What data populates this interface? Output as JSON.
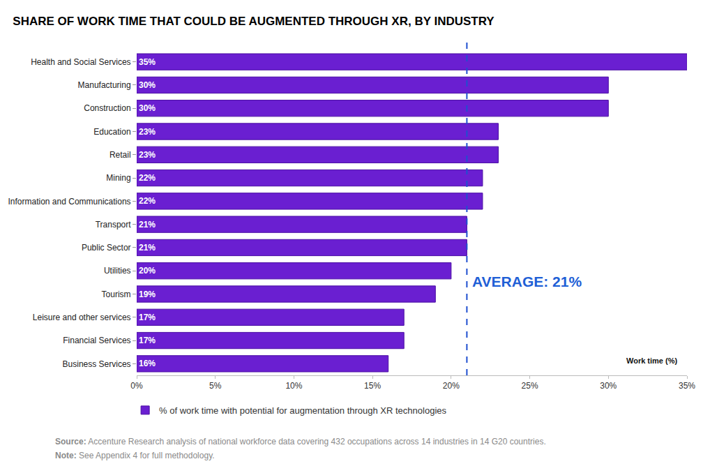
{
  "chart_data": {
    "type": "bar",
    "orientation": "horizontal",
    "title": "SHARE OF WORK TIME THAT COULD BE AUGMENTED THROUGH XR, BY INDUSTRY",
    "x_label": "Work time (%)",
    "categories": [
      "Health and Social Services",
      "Manufacturing",
      "Construction",
      "Education",
      "Retail",
      "Mining",
      "Information and Communications",
      "Transport",
      "Public Sector",
      "Utilities",
      "Tourism",
      "Leisure and other services",
      "Financial Services",
      "Business Services"
    ],
    "series": [
      {
        "name": "% of work time with potential for augmentation through XR technologies",
        "color": "#6a1fd1",
        "values": [
          35,
          30,
          30,
          23,
          23,
          22,
          22,
          21,
          21,
          20,
          19,
          17,
          17,
          16
        ],
        "value_labels": [
          "35%",
          "30%",
          "30%",
          "23%",
          "23%",
          "22%",
          "22%",
          "21%",
          "21%",
          "20%",
          "19%",
          "17%",
          "17%",
          "16%"
        ]
      }
    ],
    "data_labels": true,
    "legend": "bottom",
    "grid": false,
    "xlim": [
      0,
      35
    ],
    "xticks": [
      {
        "value": 0,
        "label": "0%"
      },
      {
        "value": 5,
        "label": "5%"
      },
      {
        "value": 10,
        "label": "10%"
      },
      {
        "value": 15,
        "label": "15%"
      },
      {
        "value": 20,
        "label": "20%"
      },
      {
        "value": 25,
        "label": "25%"
      },
      {
        "value": 30,
        "label": "30%"
      },
      {
        "value": 35,
        "label": "35%"
      }
    ],
    "average": {
      "value": 21,
      "label": "AVERAGE: 21%"
    },
    "notes": [
      {
        "label": "Source:",
        "text": "Accenture Research analysis of national workforce data covering 432 occupations across 14 industries in 14 G20 countries."
      },
      {
        "label": "Note:",
        "text": "See Appendix 4 for full methodology."
      }
    ]
  }
}
